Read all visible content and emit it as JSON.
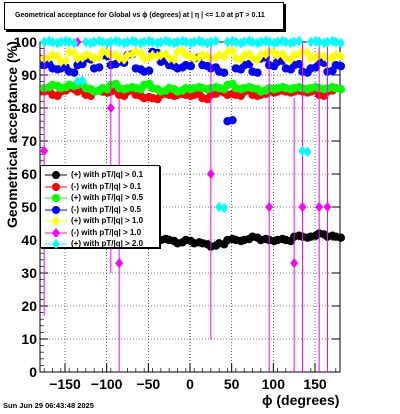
{
  "title": "Geometrical acceptance for Global vs ϕ (degrees) at | η | <= 1.0 at pT > 0.11",
  "datestamp": "Sun Jun 29 06:43:48 2025",
  "chart_data": {
    "type": "scatter",
    "xlabel": "ϕ (degrees)",
    "ylabel": "Geometrical acceptance (%)",
    "xlim": [
      -180,
      180
    ],
    "ylim": [
      0,
      100
    ],
    "xticks": [
      -150,
      -100,
      -50,
      0,
      50,
      100,
      150
    ],
    "yticks": [
      0,
      10,
      20,
      30,
      40,
      50,
      60,
      70,
      80,
      90,
      100
    ],
    "grid": true,
    "legend_position": "middle-left",
    "series": [
      {
        "name": "(+) with pT/|q| > 0.1",
        "color": "#000000",
        "marker": "circle",
        "x": [
          -175,
          -165,
          -155,
          -145,
          -135,
          -125,
          -115,
          -105,
          -95,
          -85,
          -75,
          -65,
          -55,
          -45,
          -35,
          -25,
          -15,
          -5,
          5,
          15,
          25,
          35,
          45,
          55,
          65,
          75,
          85,
          95,
          105,
          115,
          125,
          135,
          145,
          155,
          165,
          175
        ],
        "y": [
          41,
          40,
          40,
          39,
          39,
          40,
          39,
          39,
          40,
          40,
          40,
          39,
          39,
          40,
          40,
          40,
          39,
          40,
          39,
          39,
          38,
          39,
          40,
          40,
          40,
          41,
          40,
          40,
          40,
          40,
          41,
          41,
          41,
          42,
          41,
          41
        ]
      },
      {
        "name": "(-) with pT/|q| > 0.1",
        "color": "#ff0000",
        "marker": "circle",
        "x": [
          -175,
          -165,
          -155,
          -145,
          -135,
          -125,
          -115,
          -105,
          -95,
          -85,
          -75,
          -65,
          -55,
          -45,
          -35,
          -25,
          -15,
          -5,
          5,
          15,
          25,
          35,
          45,
          55,
          65,
          75,
          85,
          95,
          105,
          115,
          125,
          135,
          145,
          155,
          165,
          175
        ],
        "y": [
          85,
          84,
          85,
          86,
          85,
          84,
          85,
          85,
          85,
          84,
          85,
          84,
          83,
          83,
          84,
          84,
          84,
          84,
          84,
          83,
          84,
          85,
          84,
          84,
          85,
          84,
          84,
          85,
          85,
          85,
          85,
          85,
          85,
          84,
          85,
          86
        ]
      },
      {
        "name": "(+) with pT/|q| > 0.5",
        "color": "#00ff00",
        "marker": "circle",
        "x": [
          -175,
          -165,
          -155,
          -145,
          -135,
          -125,
          -115,
          -105,
          -95,
          -85,
          -75,
          -65,
          -55,
          -45,
          -35,
          -25,
          -15,
          -5,
          5,
          15,
          25,
          35,
          45,
          55,
          65,
          75,
          85,
          95,
          105,
          115,
          125,
          135,
          145,
          155,
          165,
          175
        ],
        "y": [
          86,
          87,
          86,
          87,
          87,
          86,
          85,
          86,
          87,
          86,
          86,
          86,
          87,
          86,
          85,
          86,
          85,
          86,
          86,
          86,
          86,
          86,
          87,
          86,
          86,
          86,
          85,
          86,
          86,
          86,
          86,
          86,
          86,
          86,
          86,
          86
        ]
      },
      {
        "name": "(-) with pT/|q| > 0.5",
        "color": "#0000ff",
        "marker": "circle",
        "x": [
          -175,
          -165,
          -155,
          -145,
          -135,
          -125,
          -115,
          -105,
          -95,
          -85,
          -75,
          -65,
          -55,
          -45,
          -35,
          -25,
          -15,
          -5,
          5,
          15,
          25,
          35,
          45,
          55,
          65,
          75,
          85,
          95,
          105,
          115,
          125,
          135,
          145,
          155,
          165,
          175
        ],
        "y": [
          93,
          92,
          92,
          91,
          93,
          95,
          92,
          96,
          93,
          94,
          96,
          92,
          91,
          97,
          94,
          93,
          92,
          93,
          95,
          93,
          92,
          91,
          76,
          92,
          93,
          91,
          95,
          93,
          94,
          92,
          93,
          91,
          92,
          94,
          91,
          93
        ]
      },
      {
        "name": "(+) with pT/|q| > 1.0",
        "color": "#ffff00",
        "marker": "diamond",
        "x": [
          -175,
          -165,
          -155,
          -145,
          -135,
          -125,
          -115,
          -105,
          -95,
          -85,
          -75,
          -65,
          -55,
          -45,
          -35,
          -25,
          -15,
          -5,
          5,
          15,
          25,
          35,
          45,
          55,
          65,
          75,
          85,
          95,
          105,
          115,
          125,
          135,
          145,
          155,
          165,
          175
        ],
        "y": [
          95,
          96,
          94,
          97,
          95,
          96,
          95,
          97,
          96,
          95,
          96,
          97,
          95,
          96,
          96,
          95,
          97,
          96,
          95,
          96,
          95,
          96,
          97,
          95,
          96,
          95,
          96,
          97,
          96,
          95,
          96,
          97,
          95,
          96,
          95,
          96
        ]
      },
      {
        "name": "(-) with pT/|q| > 1.0",
        "color": "#ff00ff",
        "marker": "diamond",
        "x": [
          -175,
          -155,
          -135,
          -115,
          -95,
          -85,
          -75,
          -55,
          -35,
          -15,
          5,
          25,
          45,
          65,
          85,
          95,
          115,
          125,
          135,
          155,
          165
        ],
        "y": [
          67,
          100,
          100,
          100,
          80,
          33,
          100,
          100,
          100,
          100,
          100,
          60,
          100,
          100,
          100,
          50,
          100,
          33,
          50,
          50,
          50
        ]
      },
      {
        "name": "(+) with pT/|q| > 2.0",
        "color": "#00ffff",
        "marker": "diamond",
        "x": [
          -175,
          -165,
          -155,
          -145,
          -135,
          -125,
          -115,
          -105,
          -95,
          -85,
          -75,
          -65,
          -55,
          -45,
          -35,
          -25,
          -15,
          -5,
          5,
          15,
          25,
          35,
          45,
          55,
          65,
          75,
          85,
          95,
          105,
          115,
          125,
          135,
          145,
          155,
          165,
          175
        ],
        "y": [
          100,
          100,
          100,
          100,
          88,
          100,
          100,
          100,
          100,
          100,
          100,
          100,
          100,
          100,
          100,
          100,
          100,
          100,
          100,
          100,
          100,
          50,
          100,
          100,
          100,
          100,
          100,
          100,
          100,
          100,
          100,
          67,
          100,
          100,
          100,
          100
        ]
      }
    ]
  }
}
